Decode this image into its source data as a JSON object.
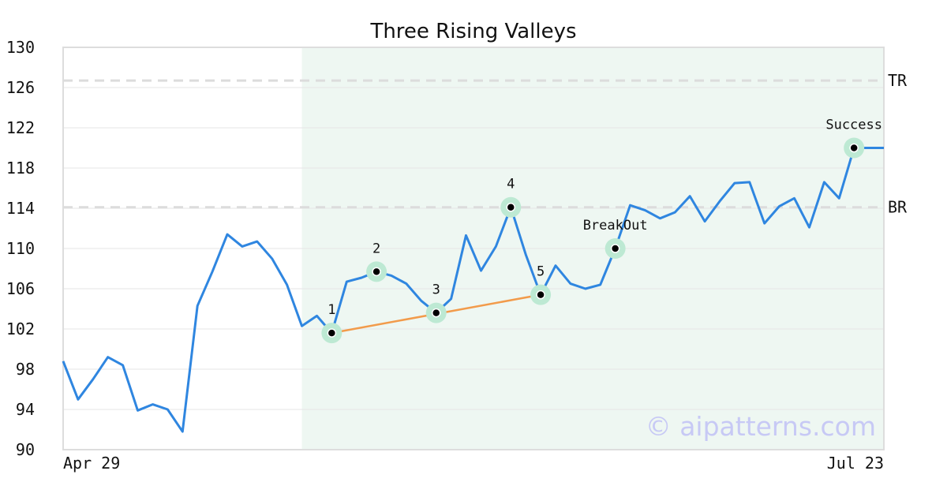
{
  "chart_data": {
    "type": "line",
    "title": "Three Rising Valleys",
    "ylim": [
      90,
      130
    ],
    "yticks": [
      90,
      94,
      98,
      102,
      106,
      110,
      114,
      118,
      122,
      126,
      130
    ],
    "x_tick_labels": [
      "Apr 29",
      "Jul 23"
    ],
    "grid": true,
    "series": [
      {
        "values": [
          98.8,
          95.0,
          97.0,
          99.2,
          98.4,
          93.9,
          94.5,
          94.0,
          91.8,
          104.3,
          107.7,
          111.4,
          110.2,
          110.7,
          109.0,
          106.4,
          102.3,
          103.3,
          101.6,
          106.7,
          107.1,
          107.7,
          107.3,
          106.5,
          104.8,
          103.6,
          105.0,
          111.3,
          107.8,
          110.2,
          114.1,
          109.4,
          105.4,
          108.3,
          106.5,
          106.0,
          106.4,
          110.0,
          114.3,
          113.8,
          113.0,
          113.6,
          115.2,
          112.7,
          114.7,
          116.5,
          116.6,
          112.5,
          114.2,
          115.0,
          112.1,
          116.6,
          115.0,
          120.0,
          120.0,
          120.0
        ]
      }
    ],
    "highlight_region": {
      "from_index": 16,
      "to_index": 55,
      "color": "#eef7f2"
    },
    "horizontal_lines": [
      {
        "label": "TR",
        "value": 126.7
      },
      {
        "label": "BR",
        "value": 114.1
      }
    ],
    "trendline": {
      "from_index": 18,
      "to_index": 32,
      "from_value": 101.6,
      "to_value": 105.4,
      "color": "#f29b4b"
    },
    "annotations": [
      {
        "label": "1",
        "index": 18,
        "value": 101.6
      },
      {
        "label": "2",
        "index": 21,
        "value": 107.7
      },
      {
        "label": "3",
        "index": 25,
        "value": 103.6
      },
      {
        "label": "4",
        "index": 30,
        "value": 114.1
      },
      {
        "label": "5",
        "index": 32,
        "value": 105.4
      },
      {
        "label": "BreakOut",
        "index": 37,
        "value": 110.0
      },
      {
        "label": "Success",
        "index": 53,
        "value": 120.0
      }
    ],
    "line_color": "#2f86e0",
    "marker_halo_color": "#bde9d3",
    "watermark": "© aipatterns.com"
  }
}
